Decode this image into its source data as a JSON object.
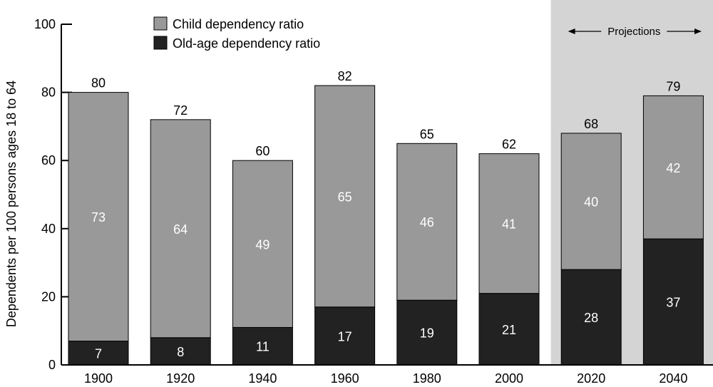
{
  "chart_data": {
    "type": "bar",
    "stacked": true,
    "categories": [
      "1900",
      "1920",
      "1940",
      "1960",
      "1980",
      "2000",
      "2020",
      "2040"
    ],
    "series": [
      {
        "name": "Old-age dependency ratio",
        "values": [
          7,
          8,
          11,
          17,
          19,
          21,
          28,
          37
        ],
        "color": "#222222"
      },
      {
        "name": "Child dependency ratio",
        "values": [
          73,
          64,
          49,
          65,
          46,
          41,
          40,
          42
        ],
        "color": "#999999"
      }
    ],
    "totals": [
      80,
      72,
      60,
      82,
      65,
      62,
      68,
      79
    ],
    "ylabel": "Dependents per 100 persons ages 18 to 64",
    "xlabel": "",
    "ylim": [
      0,
      100
    ],
    "yticks": [
      0,
      20,
      40,
      60,
      80,
      100
    ],
    "grid": false,
    "legend_position": "top-center",
    "projection_band": {
      "label": "Projections",
      "categories": [
        "2020",
        "2040"
      ],
      "color": "#d4d4d4"
    }
  }
}
